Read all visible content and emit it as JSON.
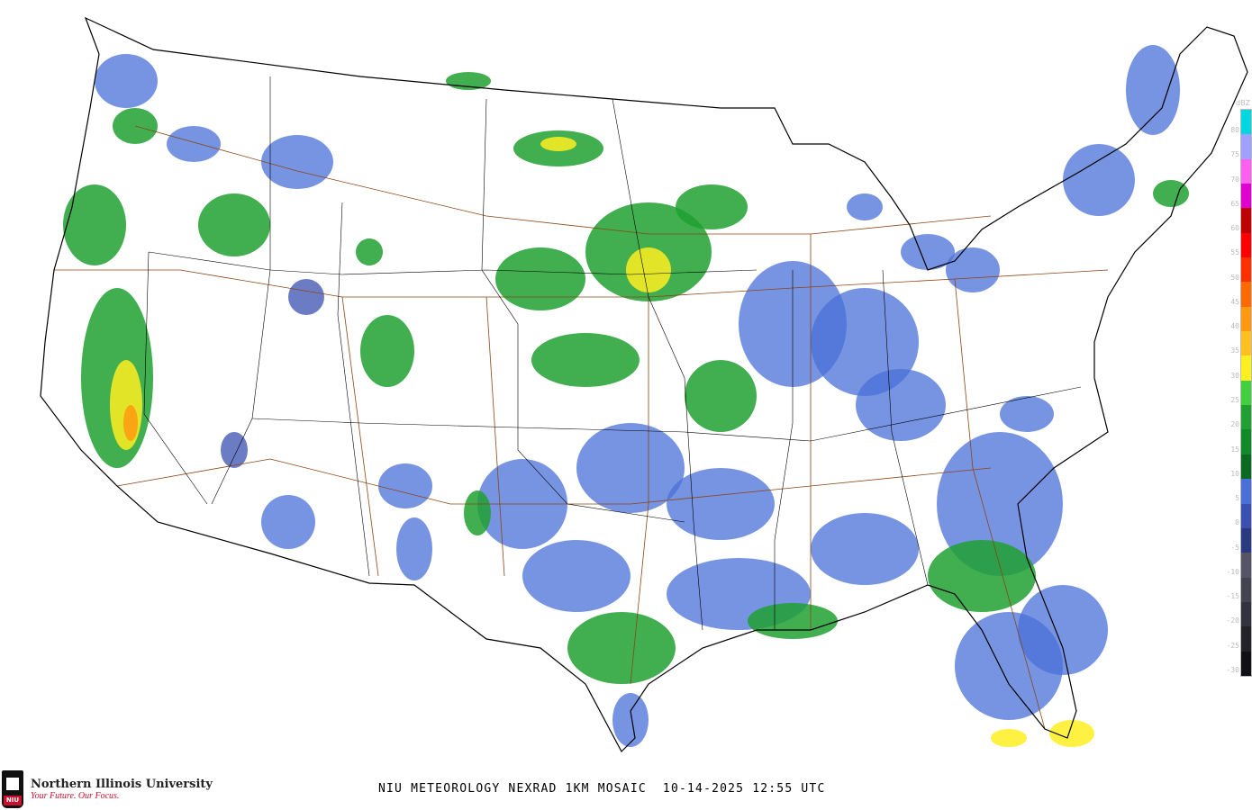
{
  "title": "NIU METEOROLOGY NEXRAD 1KM MOSAIC  10-14-2025 12:55 UTC",
  "logo": {
    "name": "Northern Illinois University",
    "tagline": "Your Future. Our Focus.",
    "badge": "NIU"
  },
  "legend": {
    "unit": "dBZ",
    "labels": [
      "80",
      "75",
      "70",
      "65",
      "60",
      "55",
      "50",
      "45",
      "40",
      "35",
      "30",
      "25",
      "20",
      "15",
      "10",
      "5",
      "0",
      "-5",
      "-10",
      "-15",
      "-20",
      "-25",
      "-30"
    ],
    "colors": [
      "#00d8e0",
      "#a0a0ff",
      "#ff60f0",
      "#e000d0",
      "#c00000",
      "#ff0000",
      "#ff3000",
      "#ff6a00",
      "#ff9a10",
      "#ffc020",
      "#ffee20",
      "#40d040",
      "#20a030",
      "#108a28",
      "#0a6a20",
      "#4a70d8",
      "#3a50b0",
      "#2a3a80",
      "#555566",
      "#444450",
      "#333340",
      "#222228",
      "#111115"
    ]
  },
  "colors": {
    "echo_light": "#4a70d8",
    "echo_green": "#20a030",
    "echo_heavy": "#ffee20",
    "highway": "#8b4513",
    "boundary": "#000000"
  }
}
